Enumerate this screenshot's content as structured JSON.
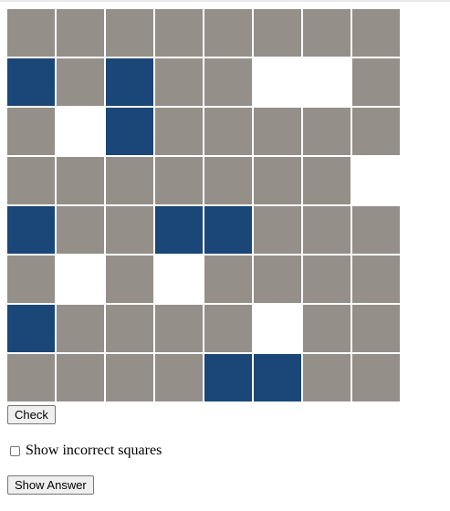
{
  "colors": {
    "empty": "#958f8a",
    "filled": "#1a4778",
    "blank": "#ffffff"
  },
  "grid": {
    "rows": 8,
    "cols": 8,
    "cells": [
      [
        0,
        0,
        0,
        0,
        0,
        0,
        0,
        0
      ],
      [
        1,
        0,
        1,
        0,
        0,
        2,
        2,
        0
      ],
      [
        0,
        2,
        1,
        0,
        0,
        0,
        0,
        0
      ],
      [
        0,
        0,
        0,
        0,
        0,
        0,
        0,
        2
      ],
      [
        1,
        0,
        0,
        1,
        1,
        0,
        0,
        0
      ],
      [
        0,
        2,
        0,
        2,
        0,
        0,
        0,
        0
      ],
      [
        1,
        0,
        0,
        0,
        0,
        2,
        0,
        0
      ],
      [
        0,
        0,
        0,
        0,
        1,
        1,
        0,
        0
      ]
    ]
  },
  "controls": {
    "check_label": "Check",
    "show_incorrect_label": "Show incorrect squares",
    "show_incorrect_checked": false,
    "show_answer_label": "Show Answer"
  }
}
